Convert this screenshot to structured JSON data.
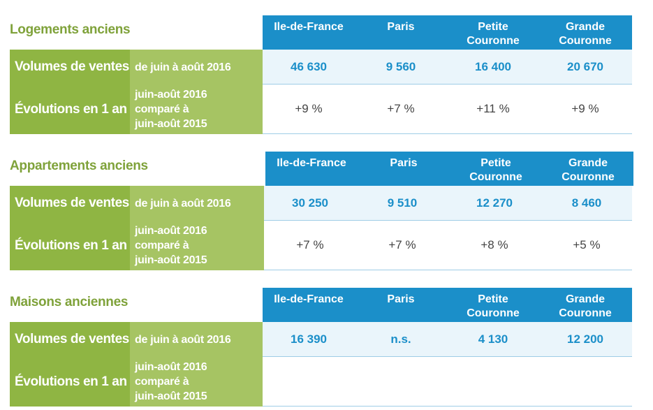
{
  "columns": [
    "Ile-de-France",
    "Paris",
    "Petite\nCouronne",
    "Grande\nCouronne"
  ],
  "sections": [
    {
      "title": "Logements anciens",
      "volumes_label": "Volumes de ventes",
      "volumes_period": "de juin à août 2016",
      "volumes": [
        "46 630",
        "9 560",
        "16 400",
        "20 670"
      ],
      "evo_label": "Évolutions en 1 an",
      "evo_period": [
        "juin-août 2016",
        "comparé à",
        "juin-août 2015"
      ],
      "evo": [
        "+9 %",
        "+7 %",
        "+11 %",
        "+9 %"
      ]
    },
    {
      "title": "Appartements anciens",
      "volumes_label": "Volumes de ventes",
      "volumes_period": "de juin à août 2016",
      "volumes": [
        "30 250",
        "9 510",
        "12 270",
        "8 460"
      ],
      "evo_label": "Évolutions en 1 an",
      "evo_period": [
        "juin-août 2016",
        "comparé à",
        "juin-août 2015"
      ],
      "evo": [
        "+7 %",
        "+7 %",
        "+8 %",
        "+5 %"
      ]
    },
    {
      "title": "Maisons anciennes",
      "volumes_label": "Volumes de ventes",
      "volumes_period": "de juin à août 2016",
      "volumes": [
        "16 390",
        "n.s.",
        "4 130",
        "12 200"
      ],
      "evo_label": "Évolutions en 1 an",
      "evo_period": [
        "juin-août 2016",
        "comparé à",
        "juin-août 2015"
      ],
      "evo": [
        "",
        "",
        "",
        ""
      ]
    }
  ]
}
